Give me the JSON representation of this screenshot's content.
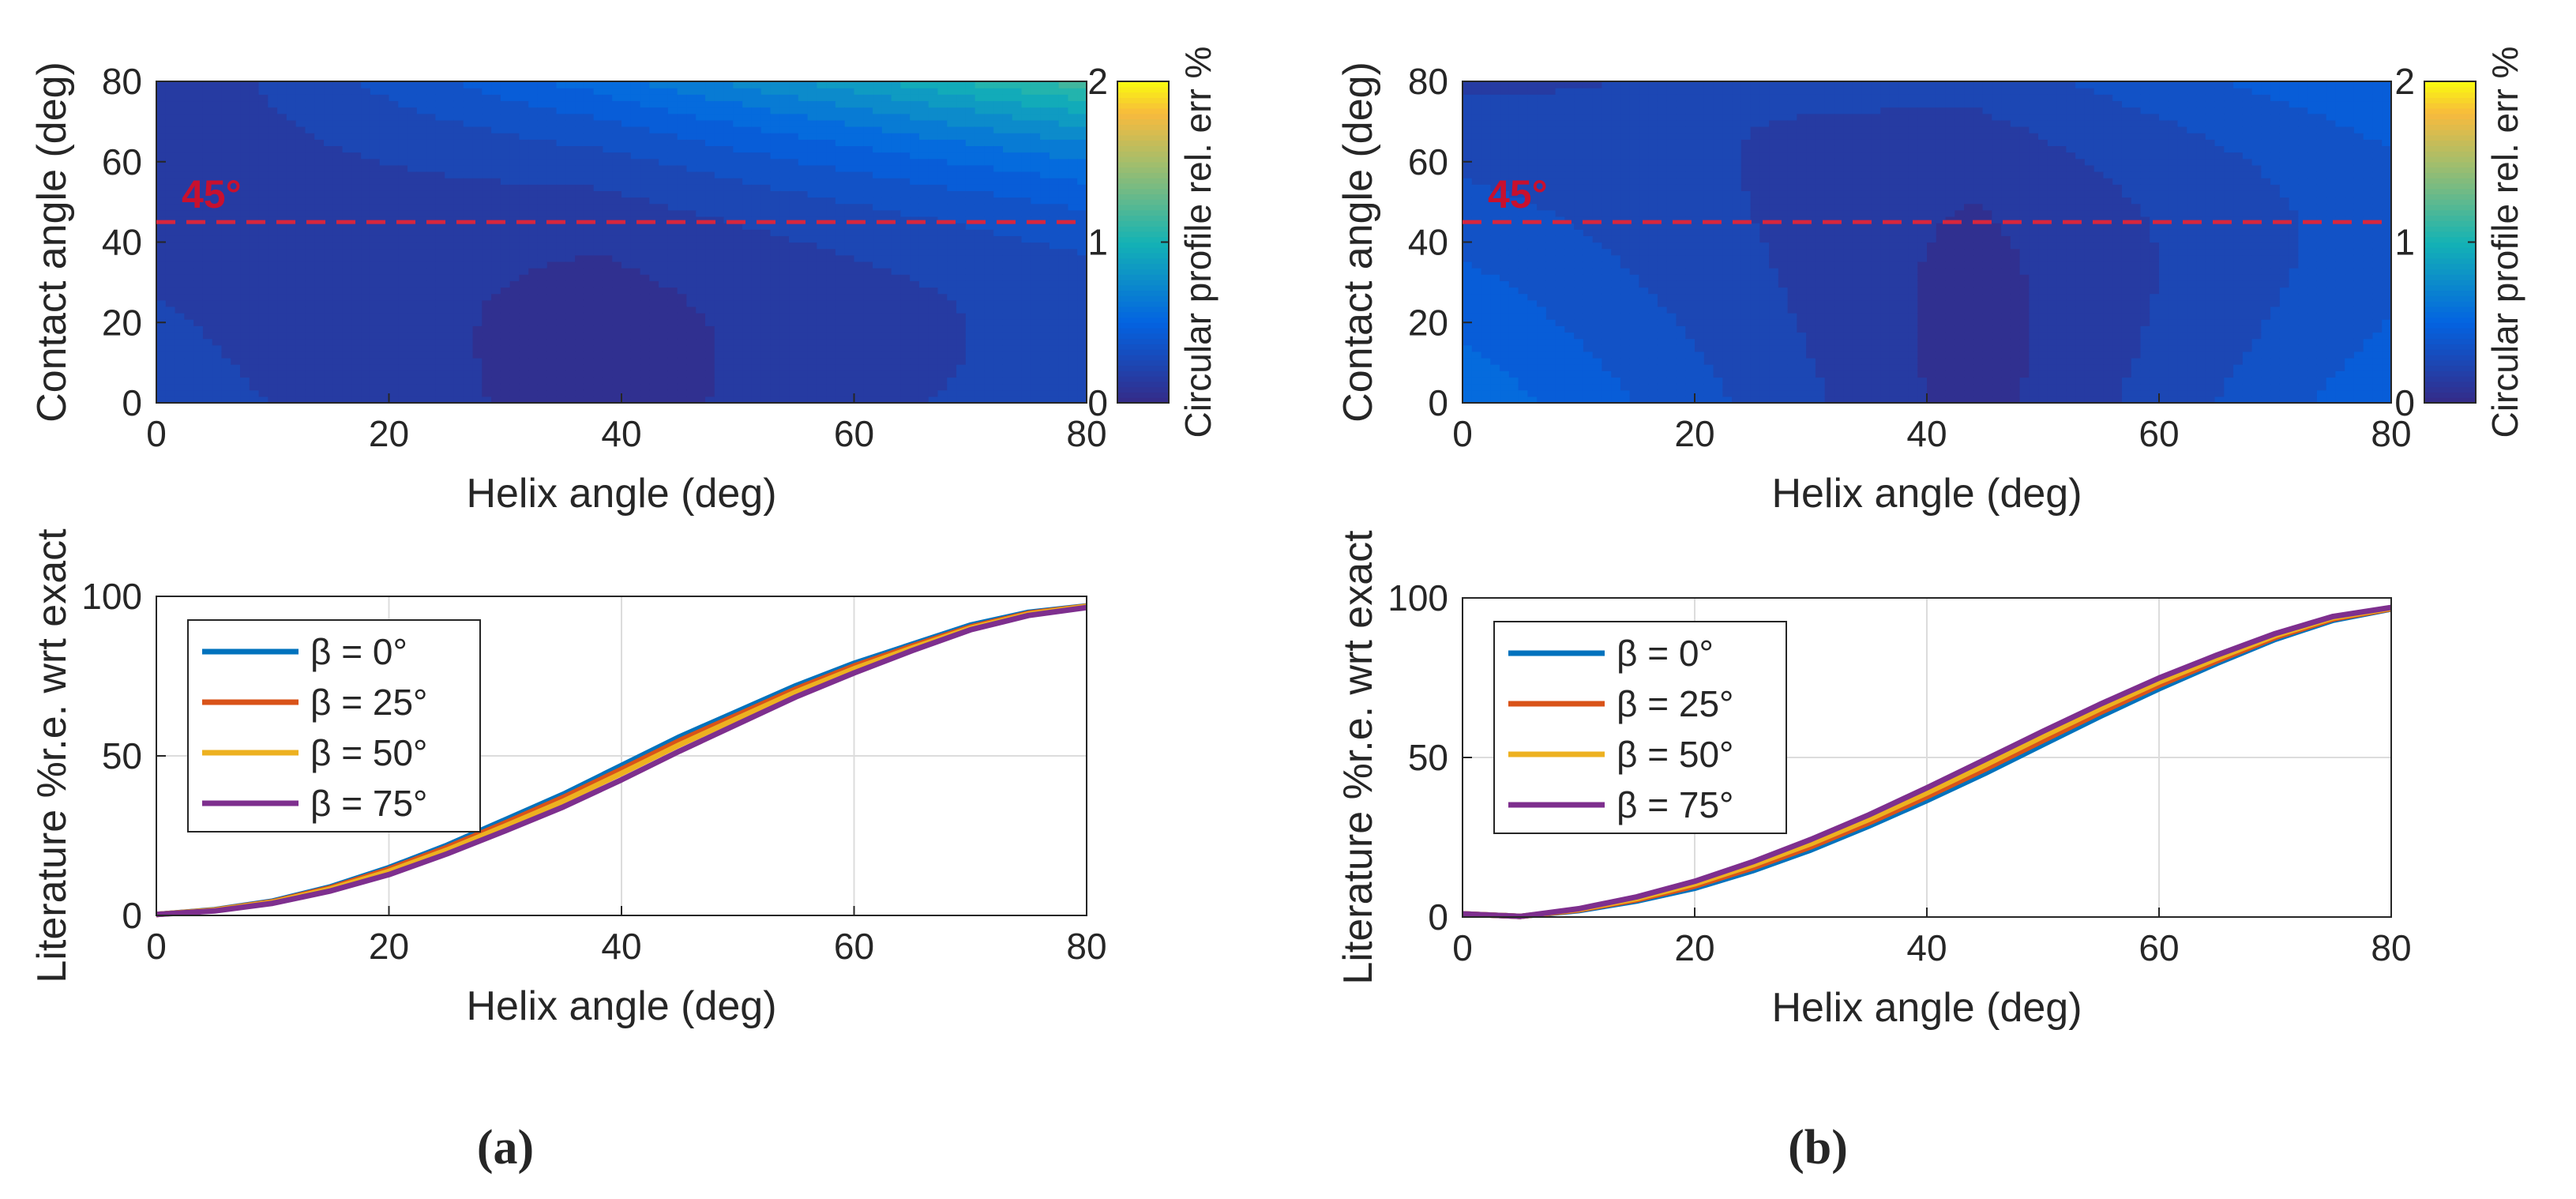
{
  "chart_data": [
    {
      "id": "a-top",
      "type": "heatmap",
      "xlabel": "Helix angle (deg)",
      "ylabel": "Contact angle (deg)",
      "xlim": [
        0,
        80
      ],
      "ylim": [
        0,
        80
      ],
      "xticks": [
        "0",
        "20",
        "40",
        "60",
        "80"
      ],
      "yticks": [
        "0",
        "20",
        "40",
        "60",
        "80"
      ],
      "colorbar": {
        "label": "Circular profile rel. err %",
        "ticks": [
          "0",
          "1",
          "2"
        ],
        "range": [
          0,
          2
        ],
        "colormap": "parula"
      },
      "model": {
        "a": 0.35,
        "x0": 38,
        "w": 0.015,
        "k": 0.006
      },
      "annotation": {
        "text": "45°",
        "y": 45,
        "line": "dashed",
        "color": "#d7263d"
      }
    },
    {
      "id": "b-top",
      "type": "heatmap",
      "xlabel": "Helix angle (deg)",
      "ylabel": "Contact angle (deg)",
      "xlim": [
        0,
        80
      ],
      "ylim": [
        0,
        80
      ],
      "xticks": [
        "0",
        "20",
        "40",
        "60",
        "80"
      ],
      "yticks": [
        "0",
        "20",
        "40",
        "60",
        "80"
      ],
      "colorbar": {
        "label": "Circular profile rel. err %",
        "ticks": [
          "0",
          "1",
          "2"
        ],
        "range": [
          0,
          2
        ],
        "colormap": "parula"
      },
      "model": {
        "a": 0.6,
        "x0": 44,
        "w": 0.02,
        "k": 0.002
      },
      "annotation": {
        "text": "45°",
        "y": 45,
        "line": "dashed",
        "color": "#d7263d"
      }
    },
    {
      "id": "a-bottom",
      "type": "line",
      "xlabel": "Helix angle (deg)",
      "ylabel": "Literature %r.e. wrt exact",
      "xlim": [
        0,
        80
      ],
      "ylim": [
        0,
        100
      ],
      "xticks": [
        "0",
        "20",
        "40",
        "60",
        "80"
      ],
      "yticks": [
        "0",
        "50",
        "100"
      ],
      "grid": true,
      "legend": "top-left",
      "x": [
        0,
        5,
        10,
        15,
        20,
        25,
        30,
        35,
        40,
        45,
        50,
        55,
        60,
        65,
        70,
        75,
        80
      ],
      "series": [
        {
          "name": "β = 0°",
          "color": "#0072bd",
          "values": [
            0.3,
            1.8,
            4.5,
            9.0,
            15.0,
            22.0,
            30.0,
            38.0,
            47.0,
            56.0,
            64.0,
            72.0,
            79.0,
            85.0,
            91.0,
            95.0,
            97.0
          ]
        },
        {
          "name": "β = 25°",
          "color": "#d95319",
          "values": [
            0.3,
            1.7,
            4.3,
            8.7,
            14.5,
            21.3,
            29.0,
            37.0,
            45.8,
            54.8,
            62.9,
            71.0,
            78.2,
            84.4,
            90.4,
            94.7,
            96.9
          ]
        },
        {
          "name": "β = 50°",
          "color": "#edb120",
          "values": [
            0.3,
            1.6,
            4.1,
            8.3,
            13.8,
            20.5,
            28.0,
            35.8,
            44.5,
            53.5,
            61.8,
            70.0,
            77.3,
            83.8,
            90.0,
            94.4,
            96.8
          ]
        },
        {
          "name": "β = 75°",
          "color": "#7e2f8e",
          "values": [
            0.3,
            1.4,
            3.8,
            7.7,
            12.8,
            19.3,
            26.5,
            34.0,
            42.5,
            51.5,
            60.0,
            68.5,
            76.0,
            83.0,
            89.5,
            94.0,
            96.5
          ]
        }
      ]
    },
    {
      "id": "b-bottom",
      "type": "line",
      "xlabel": "Helix angle (deg)",
      "ylabel": "Literature %r.e. wrt exact",
      "xlim": [
        0,
        80
      ],
      "ylim": [
        0,
        100
      ],
      "xticks": [
        "0",
        "20",
        "40",
        "60",
        "80"
      ],
      "yticks": [
        "0",
        "50",
        "100"
      ],
      "grid": true,
      "legend": "top-left",
      "x": [
        0,
        5,
        10,
        15,
        20,
        25,
        30,
        35,
        40,
        45,
        50,
        55,
        60,
        65,
        70,
        75,
        80
      ],
      "series": [
        {
          "name": "β = 0°",
          "color": "#0072bd",
          "values": [
            1.0,
            0.2,
            2.0,
            5.0,
            9.0,
            14.5,
            21.0,
            28.5,
            36.5,
            45.0,
            54.0,
            63.0,
            71.5,
            79.5,
            87.0,
            93.0,
            96.5
          ]
        },
        {
          "name": "β = 25°",
          "color": "#d95319",
          "values": [
            1.0,
            0.2,
            2.2,
            5.4,
            9.7,
            15.4,
            22.0,
            29.5,
            37.7,
            46.3,
            55.3,
            64.2,
            72.6,
            80.3,
            87.6,
            93.4,
            96.6
          ]
        },
        {
          "name": "β = 50°",
          "color": "#edb120",
          "values": [
            1.0,
            0.2,
            2.4,
            5.8,
            10.4,
            16.3,
            23.0,
            30.6,
            38.9,
            47.6,
            56.6,
            65.4,
            73.7,
            81.1,
            88.2,
            93.8,
            96.8
          ]
        },
        {
          "name": "β = 75°",
          "color": "#7e2f8e",
          "values": [
            1.0,
            0.2,
            2.6,
            6.3,
            11.2,
            17.3,
            24.3,
            32.0,
            40.5,
            49.3,
            58.2,
            66.8,
            74.9,
            82.1,
            88.8,
            94.2,
            97.0
          ]
        }
      ]
    }
  ],
  "panel_labels": {
    "a": "(a)",
    "b": "(b)"
  }
}
